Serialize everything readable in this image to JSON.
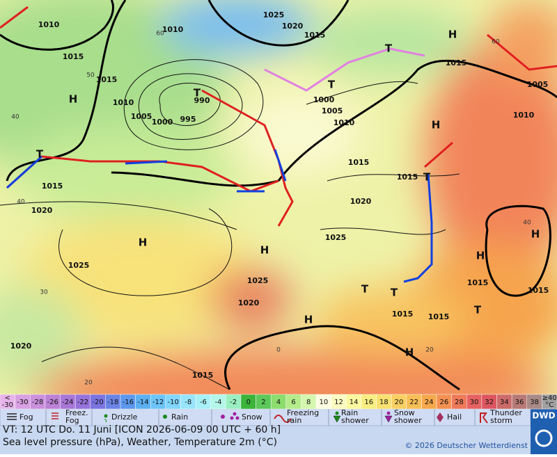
{
  "map": {
    "pressure_labels": [
      "1010",
      "1015",
      "1015",
      "H",
      "1010",
      "1005",
      "1000",
      "995",
      "990",
      "T",
      "1010",
      "1025",
      "1020",
      "1015",
      "T",
      "H",
      "1015",
      "T",
      "1000",
      "1005",
      "1010",
      "H",
      "1010",
      "1005",
      "1015",
      "1015",
      "T",
      "1020",
      "T",
      "1015",
      "1020",
      "H",
      "H",
      "1025",
      "1025",
      "1025",
      "1020",
      "T",
      "T",
      "1015",
      "1015",
      "H",
      "H",
      "H",
      "H",
      "1015",
      "1015",
      "T",
      "1020",
      "1015"
    ],
    "grid_labels": [
      "60",
      "50",
      "40",
      "40",
      "30",
      "20",
      "0",
      "20",
      "60",
      "40"
    ]
  },
  "legend": {
    "scale": [
      {
        "lines": [
          "<",
          "-30"
        ],
        "color": "#e6b4ea"
      },
      {
        "value": -30,
        "color": "#d8a0e2"
      },
      {
        "value": -28,
        "color": "#ca90dc"
      },
      {
        "value": -26,
        "color": "#bc82d6"
      },
      {
        "value": -24,
        "color": "#a876d6"
      },
      {
        "value": -22,
        "color": "#9672da"
      },
      {
        "value": -20,
        "color": "#7c74e0"
      },
      {
        "value": -18,
        "color": "#6a84e6"
      },
      {
        "value": -16,
        "color": "#5c98ec"
      },
      {
        "value": -14,
        "color": "#5cb0f2"
      },
      {
        "value": -12,
        "color": "#6cc4f8"
      },
      {
        "value": -10,
        "color": "#82d6fc"
      },
      {
        "value": -8,
        "color": "#98e4fc"
      },
      {
        "value": -6,
        "color": "#a8f0f8"
      },
      {
        "value": -4,
        "color": "#b4f6ea"
      },
      {
        "value": -2,
        "color": "#9aeec0"
      },
      {
        "value": 0,
        "color": "#3cb43c"
      },
      {
        "value": 2,
        "color": "#5cc85a"
      },
      {
        "value": 4,
        "color": "#8cdc6e"
      },
      {
        "value": 6,
        "color": "#b4ec8c"
      },
      {
        "value": 8,
        "color": "#d4f6ae"
      },
      {
        "value": 10,
        "color": "#fcfce2"
      },
      {
        "value": 12,
        "color": "#fcfcc2"
      },
      {
        "value": 14,
        "color": "#fcf8a0"
      },
      {
        "value": 16,
        "color": "#f8ee82"
      },
      {
        "value": 18,
        "color": "#f8e070"
      },
      {
        "value": 20,
        "color": "#f8d062"
      },
      {
        "value": 22,
        "color": "#f8be56"
      },
      {
        "value": 24,
        "color": "#f6a84c"
      },
      {
        "value": 26,
        "color": "#f49052"
      },
      {
        "value": 28,
        "color": "#ee7a5a"
      },
      {
        "value": 30,
        "color": "#e66262"
      },
      {
        "value": 32,
        "color": "#dc5660"
      },
      {
        "value": 34,
        "color": "#cc6a6a"
      },
      {
        "value": 36,
        "color": "#b87a76"
      },
      {
        "value": 38,
        "color": "#a88a86"
      },
      {
        "lines": [
          "≥40",
          "°C"
        ],
        "color": "#a0a0a0"
      }
    ],
    "weather": [
      {
        "lines": [
          "Fog"
        ]
      },
      {
        "lines": [
          "Freez.",
          "Fog"
        ]
      },
      {
        "lines": [
          "Drizzle"
        ]
      },
      {
        "lines": [
          "Rain"
        ]
      },
      {
        "lines": [
          "Snow"
        ]
      },
      {
        "lines": [
          "Freezing",
          "rain"
        ]
      },
      {
        "lines": [
          "Rain",
          "shower"
        ]
      },
      {
        "lines": [
          "Snow",
          "shower"
        ]
      },
      {
        "lines": [
          "Hail"
        ]
      },
      {
        "lines": [
          "Thunder",
          "storm"
        ]
      }
    ]
  },
  "footer": {
    "valid_time": "VT: 12 UTC Do.  11 Juni [ICON 2026-06-09  00 UTC + 60 h]",
    "description": "Sea level pressure (hPa), Weather, Temperature 2m (°C)",
    "copyright": "© 2026 Deutscher Wetterdienst",
    "logo": "DWD"
  }
}
